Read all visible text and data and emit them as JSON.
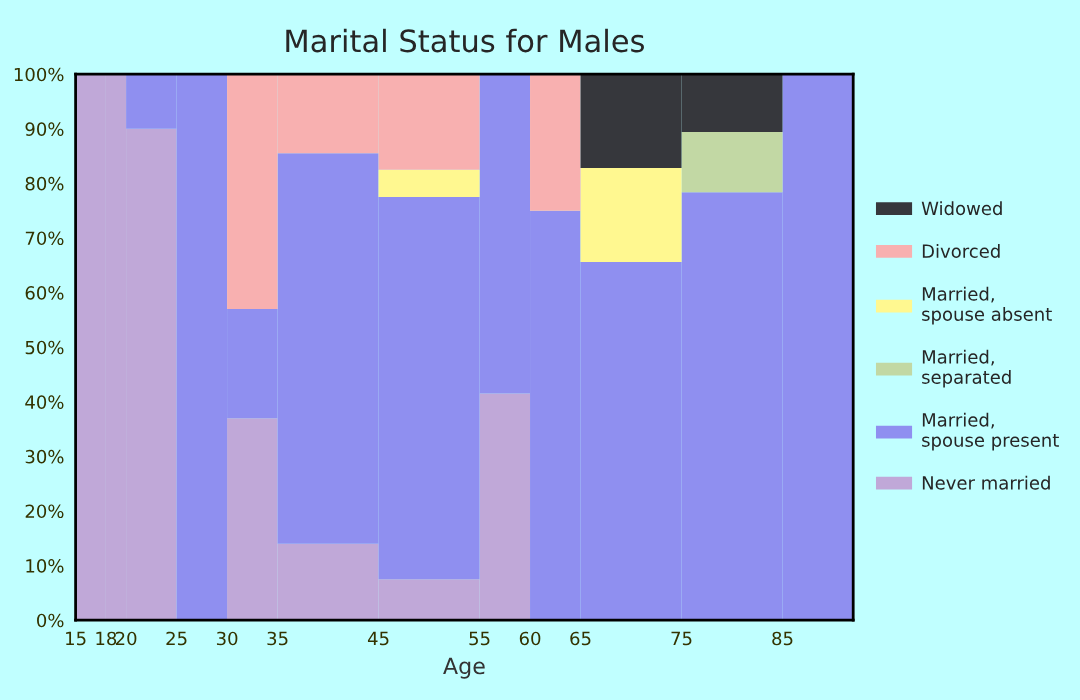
{
  "chart_data": {
    "type": "bar",
    "stacked": true,
    "title": "Marital Status for Males",
    "xlabel": "Age",
    "x": [
      16.5,
      19,
      22.5,
      27.5,
      32.5,
      40,
      50,
      57.5,
      62.5,
      70,
      80,
      88.5
    ],
    "xlim": [
      15,
      92
    ],
    "xticks": [
      15,
      18,
      20,
      25,
      30,
      35,
      45,
      55,
      60,
      65,
      75,
      85
    ],
    "ylim": [
      0,
      100
    ],
    "yticks": [
      {
        "value": 0,
        "label": "0%"
      },
      {
        "value": 10,
        "label": "10%"
      },
      {
        "value": 20,
        "label": "20%"
      },
      {
        "value": 30,
        "label": "30%"
      },
      {
        "value": 40,
        "label": "40%"
      },
      {
        "value": 50,
        "label": "50%"
      },
      {
        "value": 60,
        "label": "60%"
      },
      {
        "value": 70,
        "label": "70%"
      },
      {
        "value": 80,
        "label": "80%"
      },
      {
        "value": 90,
        "label": "90%"
      },
      {
        "value": 100,
        "label": "100%"
      }
    ],
    "series": [
      {
        "name": "Never married",
        "color": "#c0a8d8",
        "values": [
          100,
          100,
          90,
          0,
          37,
          14,
          7.5,
          41.5,
          0,
          0,
          0,
          0
        ]
      },
      {
        "name": "Married,\nspouse present",
        "color": "#8f8ff0",
        "values": [
          0,
          0,
          10,
          100,
          20,
          71.5,
          70,
          58.5,
          75,
          65.6,
          78.4,
          100
        ]
      },
      {
        "name": "Married,\nseparated",
        "color": "#c2d8a4",
        "values": [
          0,
          0,
          0,
          0,
          0,
          0,
          0,
          0,
          0,
          0,
          11,
          0
        ]
      },
      {
        "name": "Married,\nspouse absent",
        "color": "#fff890",
        "values": [
          0,
          0,
          0,
          0,
          0,
          0,
          5,
          0,
          0,
          17.2,
          0,
          0
        ]
      },
      {
        "name": "Divorced",
        "color": "#f8b0b0",
        "values": [
          0,
          0,
          0,
          0,
          43,
          14.5,
          17.5,
          0,
          25,
          0,
          0,
          0
        ]
      },
      {
        "name": "Widowed",
        "color": "#36373c",
        "values": [
          0,
          0,
          0,
          0,
          0,
          0,
          0,
          0,
          0,
          17.2,
          10.6,
          0
        ]
      }
    ],
    "legend": "right"
  }
}
